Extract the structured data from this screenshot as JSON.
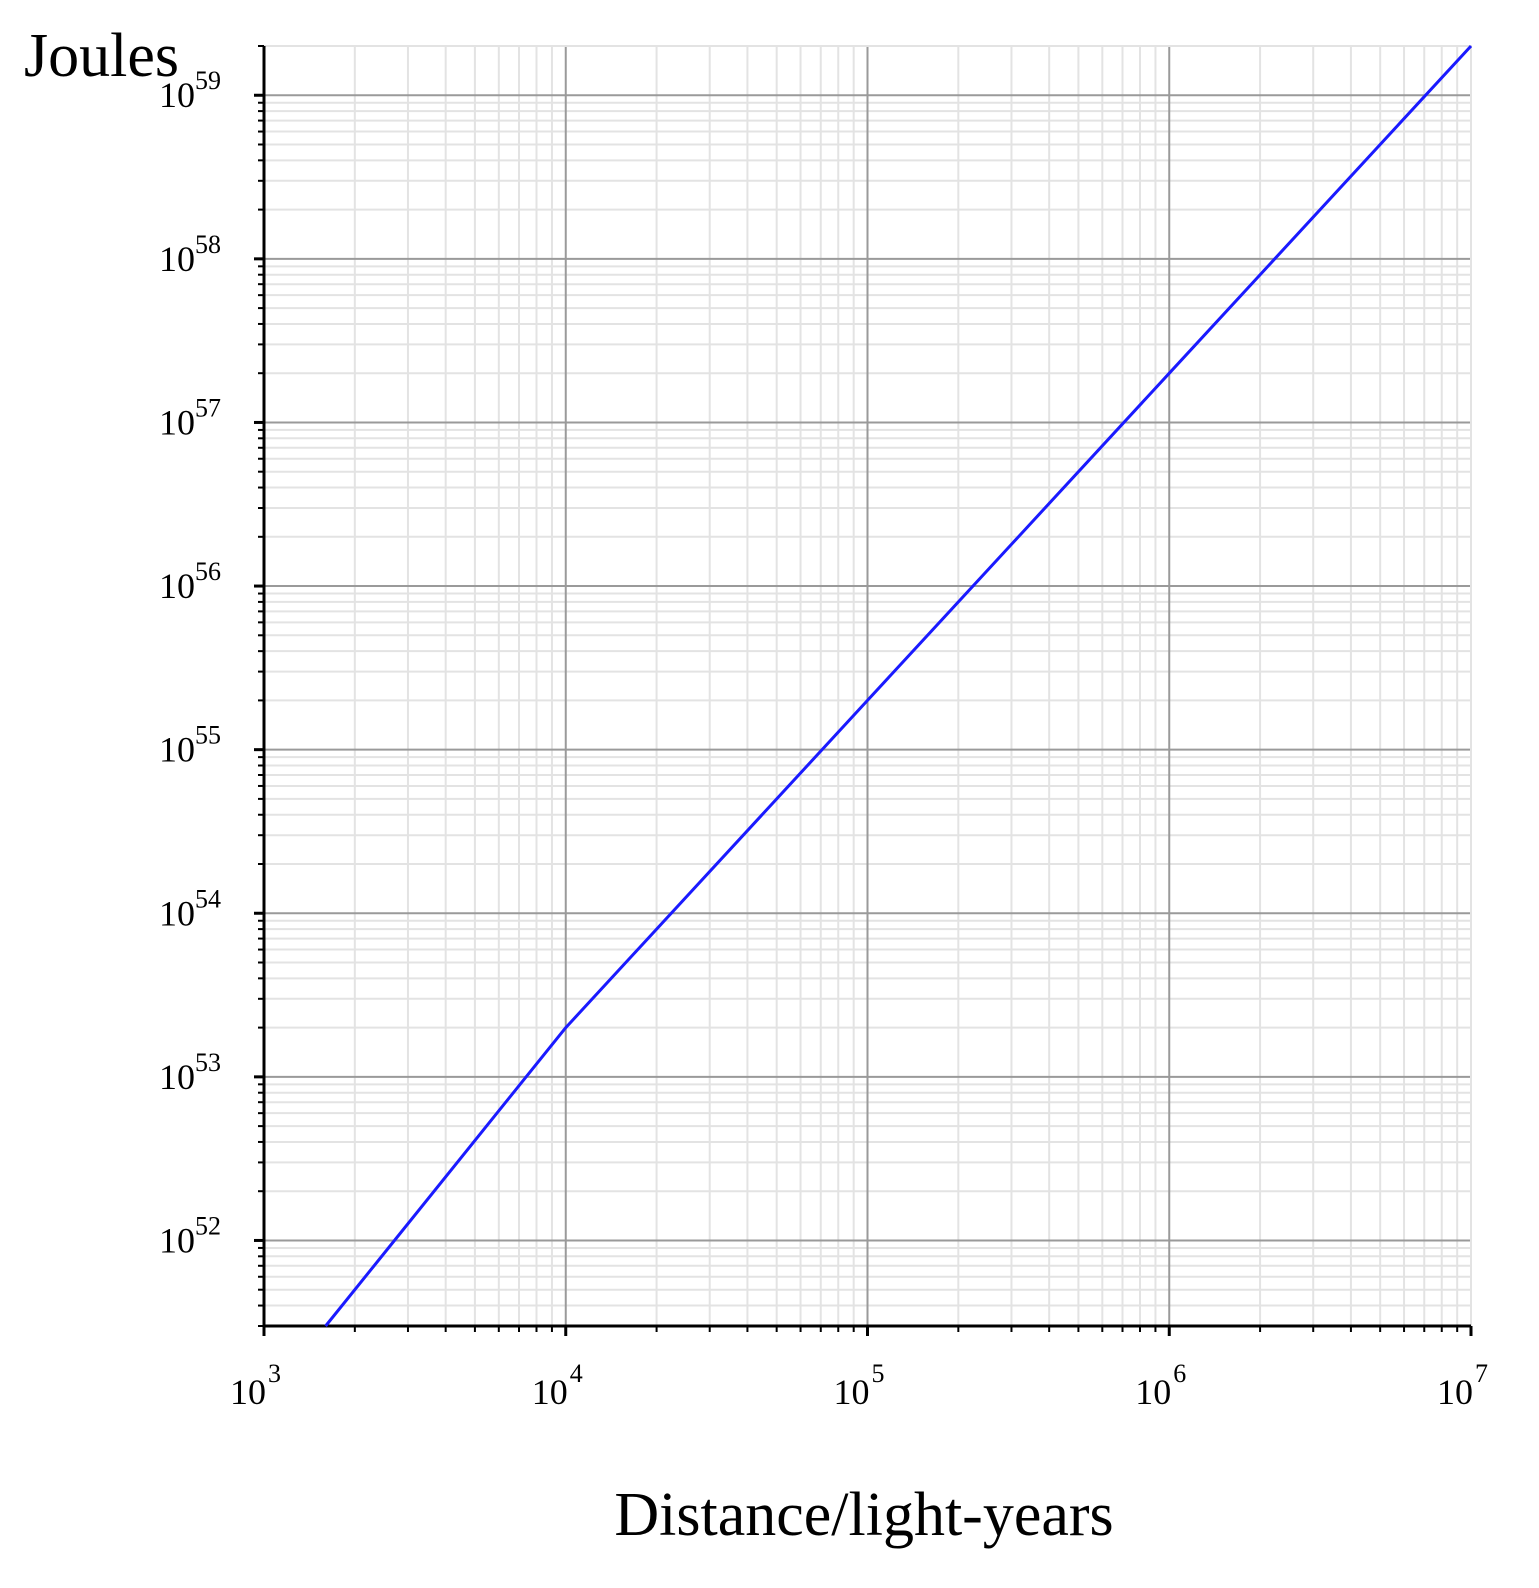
{
  "chart_data": {
    "type": "line",
    "title": "",
    "xlabel": "Distance/light-years",
    "ylabel": "Joules",
    "x_scale": "log",
    "y_scale": "log",
    "xlim": [
      1000,
      10000000
    ],
    "ylim": [
      3e+51,
      2e+59
    ],
    "grid": true,
    "x_ticks": [
      {
        "value": 1000,
        "base": "10",
        "exp": "3"
      },
      {
        "value": 10000,
        "base": "10",
        "exp": "4"
      },
      {
        "value": 100000,
        "base": "10",
        "exp": "5"
      },
      {
        "value": 1000000,
        "base": "10",
        "exp": "6"
      },
      {
        "value": 10000000,
        "base": "10",
        "exp": "7"
      }
    ],
    "y_ticks": [
      {
        "value": 1e+52,
        "base": "10",
        "exp": "52"
      },
      {
        "value": 1e+53,
        "base": "10",
        "exp": "53"
      },
      {
        "value": 1e+54,
        "base": "10",
        "exp": "54"
      },
      {
        "value": 1e+55,
        "base": "10",
        "exp": "55"
      },
      {
        "value": 1e+56,
        "base": "10",
        "exp": "56"
      },
      {
        "value": 1e+57,
        "base": "10",
        "exp": "57"
      },
      {
        "value": 1e+58,
        "base": "10",
        "exp": "58"
      },
      {
        "value": 1e+59,
        "base": "10",
        "exp": "59"
      }
    ],
    "series": [
      {
        "color": "#1a1aff",
        "x": [
          1600,
          10000,
          100000,
          1000000,
          10000000
        ],
        "y": [
          3e+51,
          2e+53,
          2e+55,
          2e+57,
          2e+59
        ]
      }
    ],
    "colors": {
      "major_grid": "#9a9a9a",
      "minor_grid": "#e3e3e3",
      "axis": "#000000",
      "line": "#1a1aff"
    }
  }
}
